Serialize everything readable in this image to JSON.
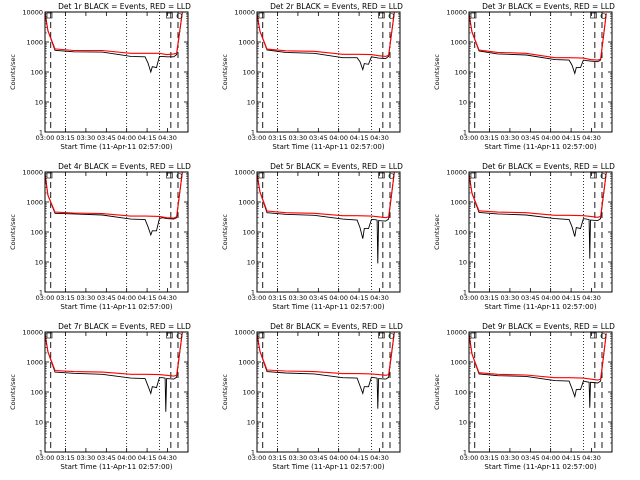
{
  "colors": {
    "events": "#000000",
    "lld": "#ff0000",
    "axes": "#000000",
    "background": "#ffffff"
  },
  "common": {
    "ylabel": "Counts/sec",
    "xlabel": "Start Time (11-Apr-11 02:57:00)",
    "x_ticks": [
      "03:00",
      "03:15",
      "03:30",
      "03:45",
      "04:00",
      "04:15",
      "04:30"
    ],
    "y_ticks": [
      "1",
      "10",
      "100",
      "1000",
      "10000"
    ]
  },
  "chart_data": [
    {
      "type": "line",
      "title": "Det 1r BLACK = Events, RED = LLD",
      "xlabel": "Start Time (11-Apr-11 02:57:00)",
      "ylabel": "Counts/sec",
      "xlim": [
        0,
        100
      ],
      "ylim": [
        1,
        10000
      ],
      "yscale": "log",
      "series": [
        {
          "name": "Events",
          "x": [
            0,
            2,
            7,
            20,
            40,
            60,
            70,
            72,
            74,
            75,
            78,
            80,
            82,
            85,
            90,
            92,
            96
          ],
          "y": [
            9500,
            2400,
            530,
            470,
            460,
            330,
            320,
            200,
            100,
            150,
            140,
            330,
            330,
            320,
            320,
            380,
            9500
          ]
        },
        {
          "name": "LLD",
          "x": [
            0,
            2,
            7,
            20,
            40,
            60,
            70,
            80,
            85,
            90,
            92,
            96
          ],
          "y": [
            9500,
            2400,
            590,
            520,
            520,
            420,
            420,
            420,
            380,
            400,
            420,
            9500
          ]
        }
      ]
    },
    {
      "type": "line",
      "title": "Det 2r BLACK = Events, RED = LLD",
      "xlabel": "Start Time (11-Apr-11 02:57:00)",
      "ylabel": "Counts/sec",
      "xlim": [
        0,
        100
      ],
      "ylim": [
        1,
        10000
      ],
      "yscale": "log",
      "series": [
        {
          "name": "Events",
          "x": [
            0,
            2,
            7,
            20,
            40,
            60,
            70,
            72,
            74,
            75,
            78,
            80,
            82,
            85,
            90,
            92,
            96
          ],
          "y": [
            9000,
            2300,
            540,
            450,
            420,
            300,
            300,
            220,
            120,
            190,
            180,
            320,
            310,
            290,
            280,
            330,
            9500
          ]
        },
        {
          "name": "LLD",
          "x": [
            0,
            2,
            7,
            20,
            40,
            60,
            70,
            80,
            85,
            90,
            92,
            96
          ],
          "y": [
            9000,
            2300,
            580,
            510,
            490,
            390,
            390,
            380,
            350,
            330,
            360,
            9500
          ]
        }
      ]
    },
    {
      "type": "line",
      "title": "Det 3r BLACK = Events, RED = LLD",
      "xlabel": "Start Time (11-Apr-11 02:57:00)",
      "ylabel": "Counts/sec",
      "xlim": [
        0,
        100
      ],
      "ylim": [
        1,
        10000
      ],
      "yscale": "log",
      "series": [
        {
          "name": "Events",
          "x": [
            0,
            2,
            7,
            20,
            40,
            60,
            70,
            72,
            74,
            75,
            78,
            80,
            82,
            85,
            90,
            92,
            96
          ],
          "y": [
            9000,
            2200,
            500,
            400,
            370,
            260,
            250,
            170,
            90,
            140,
            140,
            250,
            240,
            230,
            220,
            250,
            9000
          ]
        },
        {
          "name": "LLD",
          "x": [
            0,
            2,
            7,
            20,
            40,
            60,
            70,
            80,
            85,
            90,
            92,
            96
          ],
          "y": [
            9000,
            2200,
            540,
            450,
            420,
            300,
            300,
            290,
            260,
            250,
            270,
            9000
          ]
        }
      ]
    },
    {
      "type": "line",
      "title": "Det 4r BLACK = Events, RED = LLD",
      "xlabel": "Start Time (11-Apr-11 02:57:00)",
      "ylabel": "Counts/sec",
      "xlim": [
        0,
        100
      ],
      "ylim": [
        1,
        10000
      ],
      "yscale": "log",
      "series": [
        {
          "name": "Events",
          "x": [
            0,
            2,
            7,
            20,
            40,
            60,
            70,
            72,
            74,
            75,
            78,
            80,
            82,
            85,
            90,
            92,
            96
          ],
          "y": [
            9000,
            1700,
            420,
            400,
            370,
            270,
            260,
            150,
            80,
            110,
            110,
            280,
            300,
            280,
            270,
            300,
            9500
          ]
        },
        {
          "name": "LLD",
          "x": [
            0,
            2,
            7,
            20,
            40,
            60,
            70,
            80,
            85,
            90,
            92,
            96
          ],
          "y": [
            9000,
            1700,
            460,
            430,
            410,
            340,
            340,
            330,
            300,
            290,
            320,
            9500
          ]
        }
      ]
    },
    {
      "type": "line",
      "title": "Det 5r BLACK = Events, RED = LLD",
      "xlabel": "Start Time (11-Apr-11 02:57:00)",
      "ylabel": "Counts/sec",
      "xlim": [
        0,
        100
      ],
      "ylim": [
        1,
        10000
      ],
      "yscale": "log",
      "series": [
        {
          "name": "Events",
          "x": [
            0,
            2,
            7,
            20,
            40,
            60,
            70,
            72,
            74,
            75,
            78,
            80,
            82,
            84,
            84.5,
            85,
            90,
            92,
            96
          ],
          "y": [
            9000,
            2200,
            440,
            390,
            360,
            270,
            250,
            140,
            60,
            130,
            130,
            260,
            260,
            250,
            9,
            240,
            230,
            270,
            9500
          ]
        },
        {
          "name": "LLD",
          "x": [
            0,
            2,
            7,
            20,
            40,
            60,
            70,
            80,
            85,
            90,
            92,
            96
          ],
          "y": [
            9000,
            2200,
            500,
            440,
            420,
            350,
            350,
            340,
            320,
            300,
            320,
            9500
          ]
        }
      ]
    },
    {
      "type": "line",
      "title": "Det 6r BLACK = Events, RED = LLD",
      "xlabel": "Start Time (11-Apr-11 02:57:00)",
      "ylabel": "Counts/sec",
      "xlim": [
        0,
        100
      ],
      "ylim": [
        1,
        10000
      ],
      "yscale": "log",
      "series": [
        {
          "name": "Events",
          "x": [
            0,
            2,
            7,
            20,
            40,
            60,
            70,
            72,
            74,
            75,
            78,
            80,
            82,
            84,
            84.5,
            85,
            90,
            92,
            96
          ],
          "y": [
            9000,
            2000,
            450,
            400,
            370,
            280,
            260,
            150,
            70,
            140,
            130,
            280,
            270,
            260,
            13,
            250,
            240,
            280,
            9500
          ]
        },
        {
          "name": "LLD",
          "x": [
            0,
            2,
            7,
            20,
            40,
            60,
            70,
            80,
            85,
            90,
            92,
            96
          ],
          "y": [
            9000,
            2000,
            510,
            460,
            440,
            360,
            360,
            350,
            330,
            310,
            330,
            9500
          ]
        }
      ]
    },
    {
      "type": "line",
      "title": "Det 7r BLACK = Events, RED = LLD",
      "xlabel": "Start Time (11-Apr-11 02:57:00)",
      "ylabel": "Counts/sec",
      "xlim": [
        0,
        100
      ],
      "ylim": [
        1,
        10000
      ],
      "yscale": "log",
      "series": [
        {
          "name": "Events",
          "x": [
            0,
            2,
            7,
            20,
            40,
            60,
            70,
            72,
            74,
            75,
            78,
            80,
            82,
            84,
            84.5,
            85,
            90,
            92,
            96
          ],
          "y": [
            9000,
            2200,
            460,
            420,
            390,
            290,
            280,
            160,
            90,
            150,
            140,
            300,
            300,
            290,
            22,
            280,
            270,
            310,
            9500
          ]
        },
        {
          "name": "LLD",
          "x": [
            0,
            2,
            7,
            20,
            40,
            60,
            70,
            80,
            85,
            90,
            92,
            96
          ],
          "y": [
            9000,
            2200,
            520,
            480,
            460,
            390,
            390,
            380,
            360,
            340,
            360,
            9500
          ]
        }
      ]
    },
    {
      "type": "line",
      "title": "Det 8r BLACK = Events, RED = LLD",
      "xlabel": "Start Time (11-Apr-11 02:57:00)",
      "ylabel": "Counts/sec",
      "xlim": [
        0,
        100
      ],
      "ylim": [
        1,
        10000
      ],
      "yscale": "log",
      "series": [
        {
          "name": "Events",
          "x": [
            0,
            2,
            7,
            20,
            40,
            60,
            70,
            72,
            74,
            75,
            78,
            80,
            82,
            84,
            84.5,
            85,
            90,
            92,
            96
          ],
          "y": [
            9000,
            2300,
            480,
            430,
            400,
            300,
            290,
            160,
            90,
            150,
            150,
            310,
            300,
            290,
            28,
            280,
            270,
            310,
            9500
          ]
        },
        {
          "name": "LLD",
          "x": [
            0,
            2,
            7,
            20,
            40,
            60,
            70,
            80,
            85,
            90,
            92,
            96
          ],
          "y": [
            9000,
            2300,
            540,
            500,
            480,
            410,
            410,
            400,
            380,
            360,
            380,
            9500
          ]
        }
      ]
    },
    {
      "type": "line",
      "title": "Det 9r BLACK = Events, RED = LLD",
      "xlabel": "Start Time (11-Apr-11 02:57:00)",
      "ylabel": "Counts/sec",
      "xlim": [
        0,
        100
      ],
      "ylim": [
        1,
        10000
      ],
      "yscale": "log",
      "series": [
        {
          "name": "Events",
          "x": [
            0,
            2,
            7,
            20,
            40,
            60,
            70,
            72,
            74,
            75,
            78,
            80,
            82,
            84,
            84.5,
            85,
            90,
            92,
            96
          ],
          "y": [
            9000,
            1900,
            400,
            350,
            330,
            240,
            230,
            130,
            70,
            120,
            120,
            230,
            220,
            210,
            30,
            210,
            200,
            230,
            9000
          ]
        },
        {
          "name": "LLD",
          "x": [
            0,
            2,
            7,
            20,
            40,
            60,
            70,
            80,
            85,
            90,
            92,
            96
          ],
          "y": [
            9000,
            1900,
            440,
            390,
            370,
            300,
            300,
            290,
            270,
            250,
            270,
            9000
          ]
        }
      ]
    }
  ]
}
